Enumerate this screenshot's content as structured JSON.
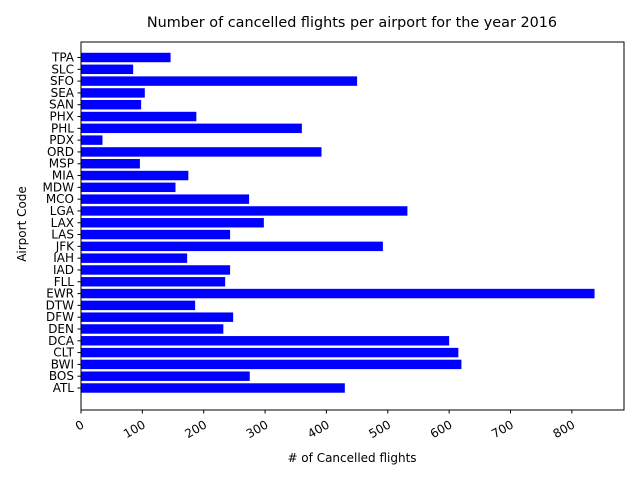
{
  "chart_data": {
    "type": "bar",
    "orientation": "horizontal",
    "title": "Number of cancelled flights per airport for the year 2016",
    "xlabel": "# of Cancelled flights",
    "ylabel": "Airport Code",
    "xlim": [
      0,
      885
    ],
    "xticks": [
      "0",
      "100",
      "200",
      "300",
      "400",
      "500",
      "600",
      "700",
      "800"
    ],
    "grid": false,
    "bar_color": "#0000ff",
    "categories": [
      "ATL",
      "BOS",
      "BWI",
      "CLT",
      "DCA",
      "DEN",
      "DFW",
      "DTW",
      "EWR",
      "FLL",
      "IAD",
      "IAH",
      "JFK",
      "LAS",
      "LAX",
      "LGA",
      "MCO",
      "MDW",
      "MIA",
      "MSP",
      "ORD",
      "PDX",
      "PHL",
      "PHX",
      "SAN",
      "SEA",
      "SFO",
      "SLC",
      "TPA"
    ],
    "values": [
      430,
      275,
      620,
      615,
      600,
      232,
      248,
      186,
      837,
      235,
      243,
      173,
      492,
      243,
      298,
      532,
      274,
      154,
      175,
      96,
      392,
      35,
      360,
      188,
      98,
      104,
      450,
      85,
      146
    ]
  }
}
